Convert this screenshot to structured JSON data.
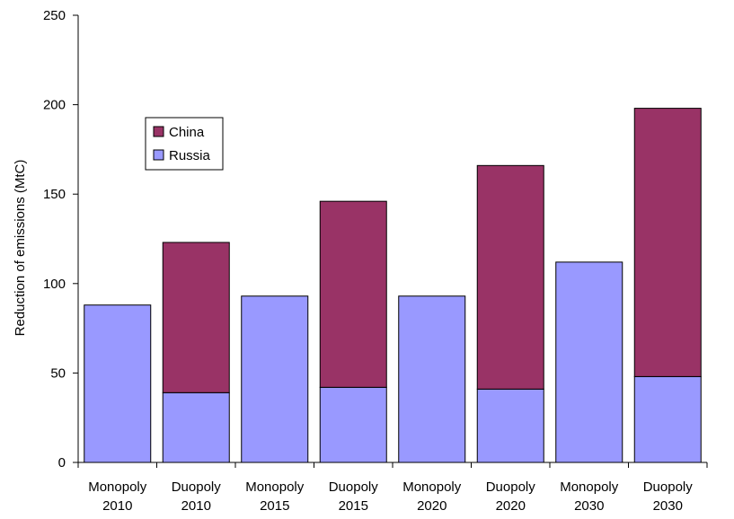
{
  "chart_data": {
    "type": "bar",
    "stacked": true,
    "categories": [
      [
        "Monopoly",
        "2010"
      ],
      [
        "Duopoly",
        "2010"
      ],
      [
        "Monopoly",
        "2015"
      ],
      [
        "Duopoly",
        "2015"
      ],
      [
        "Monopoly",
        "2020"
      ],
      [
        "Duopoly",
        "2020"
      ],
      [
        "Monopoly",
        "2030"
      ],
      [
        "Duopoly",
        "2030"
      ]
    ],
    "series": [
      {
        "name": "Russia",
        "color": "#9999ff",
        "values": [
          88,
          39,
          93,
          42,
          93,
          41,
          112,
          48
        ]
      },
      {
        "name": "China",
        "color": "#993366",
        "values": [
          0,
          84,
          0,
          104,
          0,
          125,
          0,
          150
        ]
      }
    ],
    "ylabel": "Reduction of emissions (MtC)",
    "xlabel": "",
    "ylim": [
      0,
      250
    ],
    "yticks": [
      0,
      50,
      100,
      150,
      200,
      250
    ],
    "grid": false,
    "legend": {
      "placement": "upper-left",
      "order": [
        "China",
        "Russia"
      ]
    }
  }
}
